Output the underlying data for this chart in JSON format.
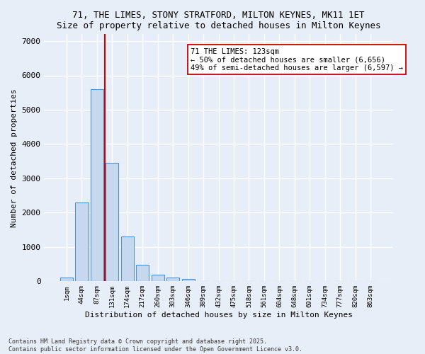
{
  "title_line1": "71, THE LIMES, STONY STRATFORD, MILTON KEYNES, MK11 1ET",
  "title_line2": "Size of property relative to detached houses in Milton Keynes",
  "xlabel": "Distribution of detached houses by size in Milton Keynes",
  "ylabel": "Number of detached properties",
  "categories": [
    "1sqm",
    "44sqm",
    "87sqm",
    "131sqm",
    "174sqm",
    "217sqm",
    "260sqm",
    "303sqm",
    "346sqm",
    "389sqm",
    "432sqm",
    "475sqm",
    "518sqm",
    "561sqm",
    "604sqm",
    "648sqm",
    "691sqm",
    "734sqm",
    "777sqm",
    "820sqm",
    "863sqm"
  ],
  "values": [
    100,
    2300,
    5600,
    3450,
    1300,
    490,
    200,
    110,
    60,
    0,
    0,
    0,
    0,
    0,
    0,
    0,
    0,
    0,
    0,
    0,
    0
  ],
  "bar_color": "#c5d8ed",
  "bar_edge_color": "#5a8fc0",
  "vline_position": 2.5,
  "vline_color": "#cc0000",
  "annotation_text": "71 THE LIMES: 123sqm\n← 50% of detached houses are smaller (6,656)\n49% of semi-detached houses are larger (6,597) →",
  "annotation_box_color": "#ffffff",
  "annotation_box_edge": "#cc0000",
  "ylim": [
    0,
    7200
  ],
  "yticks": [
    0,
    1000,
    2000,
    3000,
    4000,
    5000,
    6000,
    7000
  ],
  "bg_color": "#e8eef7",
  "grid_color": "#ffffff",
  "footnote": "Contains HM Land Registry data © Crown copyright and database right 2025.\nContains public sector information licensed under the Open Government Licence v3.0."
}
